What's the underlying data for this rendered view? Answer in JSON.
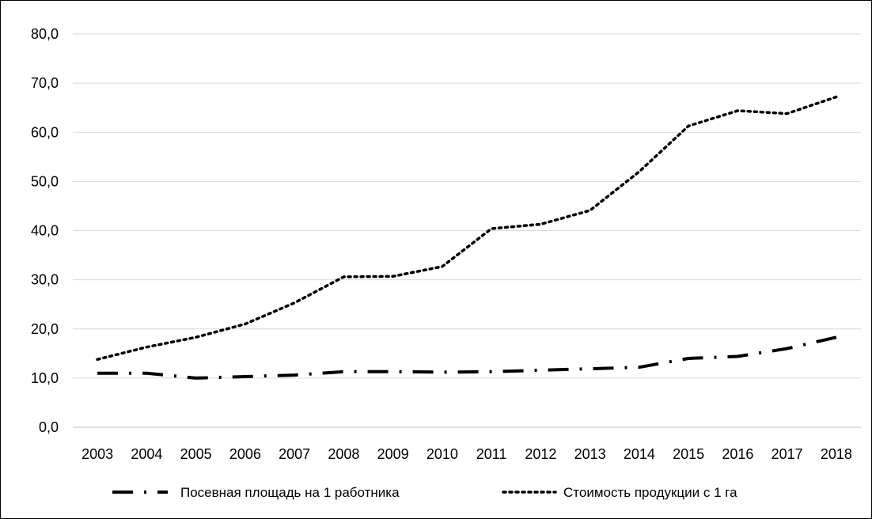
{
  "chart_data": {
    "type": "line",
    "categories": [
      "2003",
      "2004",
      "2005",
      "2006",
      "2007",
      "2008",
      "2009",
      "2010",
      "2011",
      "2012",
      "2013",
      "2014",
      "2015",
      "2016",
      "2017",
      "2018"
    ],
    "ylim": [
      0,
      80
    ],
    "yticks": [
      "0,0",
      "10,0",
      "20,0",
      "30,0",
      "40,0",
      "50,0",
      "60,0",
      "70,0",
      "80,0"
    ],
    "grid": true,
    "legend_position": "bottom",
    "series": [
      {
        "name": "Посевная площадь на 1 работника",
        "style": "long-dash-dot",
        "color": "#000000",
        "values": [
          11.0,
          11.0,
          10.0,
          10.3,
          10.6,
          11.3,
          11.3,
          11.2,
          11.3,
          11.6,
          11.9,
          12.2,
          14.0,
          14.4,
          16.0,
          18.3
        ]
      },
      {
        "name": "Стоимость продукции с 1 га",
        "style": "dotted",
        "color": "#000000",
        "values": [
          13.8,
          16.3,
          18.3,
          21.0,
          25.3,
          30.6,
          30.7,
          32.7,
          40.4,
          41.3,
          44.1,
          52.0,
          61.3,
          64.4,
          63.8,
          67.2
        ]
      }
    ]
  }
}
